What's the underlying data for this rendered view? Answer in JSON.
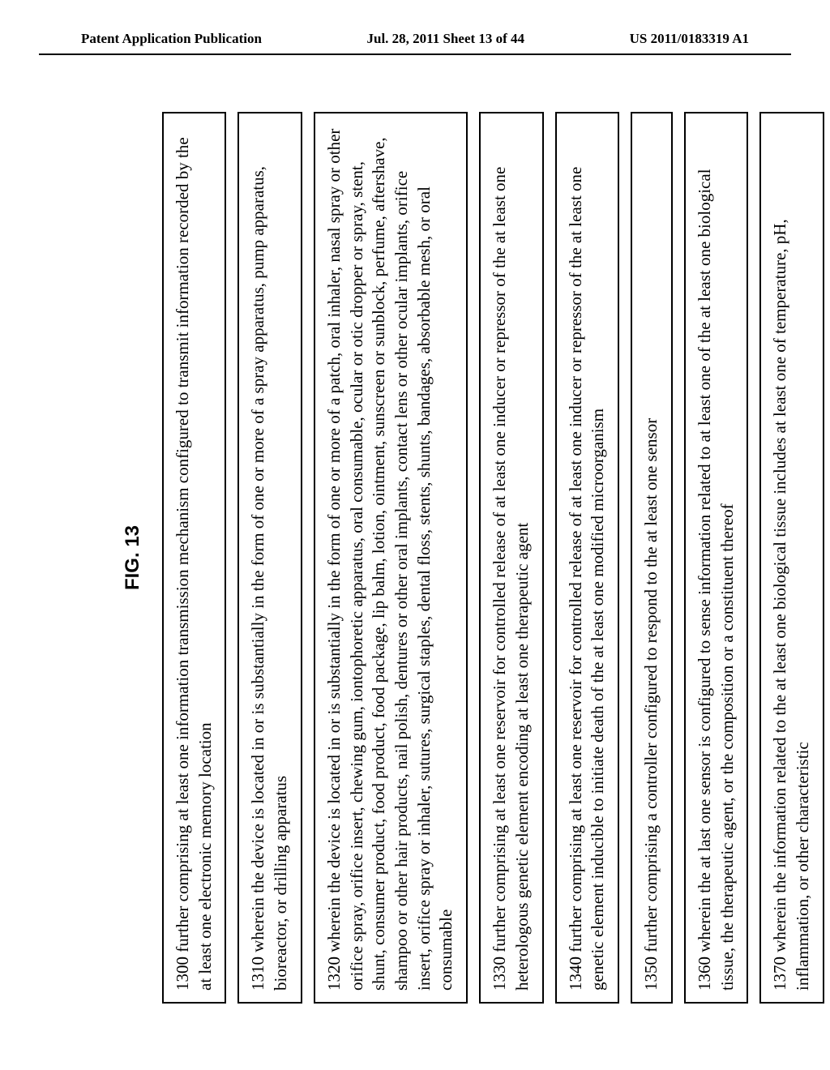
{
  "header": {
    "left": "Patent Application Publication",
    "center": "Jul. 28, 2011  Sheet 13 of 44",
    "right": "US 2011/0183319 A1"
  },
  "figure_label": "FIG. 13",
  "boxes": [
    "1300 further comprising at least one information transmission mechanism configured to transmit information recorded by the at least one electronic memory location",
    "1310 wherein the device is located in or is substantially in the form of one or more of a spray apparatus, pump apparatus, bioreactor, or drilling apparatus",
    "1320 wherein the device is located in or is substantially in the form of one or more of a patch, oral inhaler, nasal spray or other orifice spray, orifice insert, chewing gum, iontophoretic apparatus, oral consumable, ocular or otic dropper or spray, stent, shunt, consumer product, food product, food package, lip balm, lotion, ointment, sunscreen or sunblock, perfume, aftershave, shampoo or other hair products, nail polish, dentures or other oral implants, contact lens or other ocular implants, orifice insert, orifice spray or inhaler, sutures, surgical staples, dental floss, stents, shunts, bandages, absorbable mesh, or oral consumable",
    "1330 further comprising at least one reservoir for controlled release of at least one inducer or repressor of the at least one heterologous genetic element encoding at least one therapeutic agent",
    "1340 further comprising at least one reservoir for controlled release of at least one inducer or repressor of the at least one genetic element inducible to initiate death of the at least one modified microorganism",
    "1350 further comprising a controller configured to respond to the at least one sensor",
    "1360 wherein the at last one sensor is configured to sense information related to at least one of the at least one biological tissue, the therapeutic agent, or the composition or a constituent thereof",
    "1370 wherein the information related to the at least one biological tissue includes at least one of temperature, pH, inflammation, or other characteristic"
  ]
}
